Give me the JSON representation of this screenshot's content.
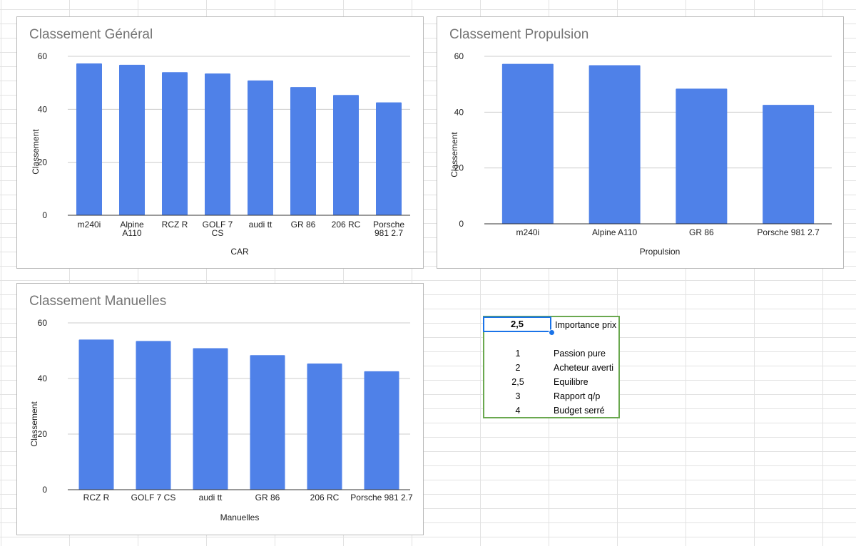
{
  "charts": [
    {
      "id": "general",
      "title": "Classement Général",
      "xlabel": "CAR",
      "ylabel": "Classement",
      "color": "#4f81e8",
      "chart_data": {
        "type": "bar",
        "categories": [
          [
            "m240i"
          ],
          [
            "Alpine",
            "A110"
          ],
          [
            "RCZ R"
          ],
          [
            "GOLF 7",
            "CS"
          ],
          [
            "audi tt"
          ],
          [
            "GR 86"
          ],
          [
            "206 RC"
          ],
          [
            "Porsche",
            "981 2.7"
          ]
        ],
        "values": [
          57.3,
          56.8,
          54,
          53.5,
          50.9,
          48.4,
          45.4,
          42.6
        ],
        "yticks": [
          "0",
          "20",
          "40",
          "60"
        ],
        "ylim": [
          0,
          60
        ]
      }
    },
    {
      "id": "propulsion",
      "title": "Classement Propulsion",
      "xlabel": "Propulsion",
      "ylabel": "Classement",
      "color": "#4f81e8",
      "chart_data": {
        "type": "bar",
        "categories": [
          [
            "m240i"
          ],
          [
            "Alpine A110"
          ],
          [
            "GR 86"
          ],
          [
            "Porsche 981 2.7"
          ]
        ],
        "values": [
          57.3,
          56.8,
          48.4,
          42.6
        ],
        "yticks": [
          "0",
          "20",
          "40",
          "60"
        ],
        "ylim": [
          0,
          60
        ]
      }
    },
    {
      "id": "manuelles",
      "title": "Classement Manuelles",
      "xlabel": "Manuelles",
      "ylabel": "Classement",
      "color": "#4f81e8",
      "chart_data": {
        "type": "bar",
        "categories": [
          [
            "RCZ R"
          ],
          [
            "GOLF 7 CS"
          ],
          [
            "audi tt"
          ],
          [
            "GR 86"
          ],
          [
            "206 RC"
          ],
          [
            "Porsche 981 2.7"
          ]
        ],
        "values": [
          54,
          53.5,
          50.9,
          48.4,
          45.4,
          42.6
        ],
        "yticks": [
          "0",
          "20",
          "40",
          "60"
        ],
        "ylim": [
          0,
          60
        ]
      }
    }
  ],
  "legend": {
    "selected_value": "2,5",
    "selected_label": "Importance prix",
    "rows": [
      {
        "num": "1",
        "label": "Passion pure"
      },
      {
        "num": "2",
        "label": "Acheteur averti"
      },
      {
        "num": "2,5",
        "label": "Equilibre"
      },
      {
        "num": "3",
        "label": "Rapport q/p"
      },
      {
        "num": "4",
        "label": "Budget serré"
      }
    ]
  }
}
